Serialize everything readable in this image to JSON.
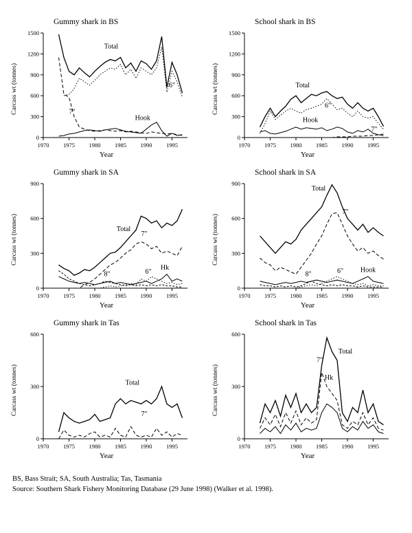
{
  "figure": {
    "footnote_abbreviations": "BS, Bass Strait; SA, South Australia; Tas, Tasmania",
    "footnote_source": "Source: Southern Shark Fishery Monitoring Database (29 June 1998) (Walker et al. 1998).",
    "line_color": "#000000",
    "background": "#ffffff"
  },
  "chart_data": [
    {
      "type": "line",
      "title": "Gummy shark in BS",
      "xlabel": "Year",
      "ylabel": "Carcass wt (tonnes)",
      "xlim": [
        1970,
        1998
      ],
      "ylim": [
        0,
        1500
      ],
      "yticks": [
        0,
        300,
        600,
        900,
        1200,
        1500
      ],
      "xticks": [
        1970,
        1975,
        1980,
        1985,
        1990,
        1995
      ],
      "x": [
        1973,
        1974,
        1975,
        1976,
        1977,
        1978,
        1979,
        1980,
        1981,
        1982,
        1983,
        1984,
        1985,
        1986,
        1987,
        1988,
        1989,
        1990,
        1991,
        1992,
        1993,
        1994,
        1995,
        1996,
        1997
      ],
      "series": [
        {
          "name": "Total",
          "style": "solid",
          "values": [
            1480,
            1150,
            950,
            900,
            1000,
            930,
            870,
            950,
            1020,
            1080,
            1120,
            1100,
            1150,
            1000,
            1070,
            950,
            1100,
            1060,
            980,
            1100,
            1450,
            720,
            1080,
            900,
            640
          ]
        },
        {
          "name": "6\"",
          "style": "dotted",
          "values": [
            null,
            600,
            620,
            700,
            850,
            800,
            750,
            820,
            900,
            950,
            1000,
            980,
            1050,
            900,
            980,
            850,
            1000,
            950,
            900,
            1000,
            1300,
            650,
            950,
            800,
            580
          ]
        },
        {
          "name": "7\"",
          "style": "dashed",
          "values": [
            1150,
            620,
            580,
            300,
            150,
            120,
            100,
            90,
            100,
            110,
            100,
            90,
            100,
            80,
            90,
            80,
            70,
            60,
            80,
            70,
            60,
            50,
            60,
            40,
            30
          ]
        },
        {
          "name": "Hook",
          "style": "solid",
          "values": [
            20,
            30,
            50,
            60,
            80,
            100,
            110,
            100,
            90,
            110,
            120,
            130,
            110,
            90,
            80,
            70,
            60,
            120,
            180,
            220,
            100,
            20,
            60,
            30,
            40
          ]
        }
      ],
      "annotations": [
        {
          "text": "Total",
          "x": 1983.2,
          "y": 1280
        },
        {
          "text": "6\"",
          "x": 1995.0,
          "y": 720
        },
        {
          "text": "7\"",
          "x": 1975.6,
          "y": 340
        },
        {
          "text": "Hook",
          "x": 1989.3,
          "y": 250
        }
      ]
    },
    {
      "type": "line",
      "title": "School shark in BS",
      "xlabel": "Year",
      "ylabel": "Carcass wt (tonnes)",
      "xlim": [
        1970,
        1998
      ],
      "ylim": [
        0,
        1500
      ],
      "yticks": [
        0,
        300,
        600,
        900,
        1200,
        1500
      ],
      "xticks": [
        1970,
        1975,
        1980,
        1985,
        1990,
        1995
      ],
      "x": [
        1973,
        1974,
        1975,
        1976,
        1977,
        1978,
        1979,
        1980,
        1981,
        1982,
        1983,
        1984,
        1985,
        1986,
        1987,
        1988,
        1989,
        1990,
        1991,
        1992,
        1993,
        1994,
        1995,
        1996,
        1997
      ],
      "series": [
        {
          "name": "Total",
          "style": "solid",
          "values": [
            150,
            300,
            420,
            300,
            380,
            450,
            550,
            600,
            500,
            560,
            620,
            600,
            640,
            660,
            600,
            560,
            580,
            480,
            420,
            500,
            420,
            380,
            420,
            300,
            160
          ]
        },
        {
          "name": "6\"",
          "style": "dotted",
          "values": [
            60,
            200,
            380,
            260,
            320,
            380,
            420,
            380,
            350,
            400,
            420,
            450,
            480,
            560,
            480,
            400,
            420,
            350,
            300,
            380,
            300,
            280,
            300,
            200,
            120
          ]
        },
        {
          "name": "Hook",
          "style": "solid",
          "values": [
            80,
            100,
            60,
            50,
            70,
            90,
            120,
            150,
            120,
            140,
            130,
            120,
            140,
            100,
            120,
            150,
            130,
            80,
            60,
            100,
            80,
            120,
            60,
            40,
            30
          ]
        },
        {
          "name": "7\"",
          "style": "dashed",
          "values": [
            0,
            0,
            0,
            0,
            0,
            0,
            0,
            0,
            0,
            0,
            0,
            0,
            0,
            0,
            0,
            10,
            10,
            10,
            20,
            20,
            20,
            30,
            30,
            40,
            50
          ]
        }
      ],
      "annotations": [
        {
          "text": "Total",
          "x": 1981.3,
          "y": 720
        },
        {
          "text": "6\"",
          "x": 1986.2,
          "y": 430
        },
        {
          "text": "Hook",
          "x": 1982.8,
          "y": 220
        },
        {
          "text": "7\"",
          "x": 1995.2,
          "y": 90
        }
      ]
    },
    {
      "type": "line",
      "title": "Gummy shark in SA",
      "xlabel": "Year",
      "ylabel": "Carcass wt (tonnes)",
      "xlim": [
        1970,
        1998
      ],
      "ylim": [
        0,
        900
      ],
      "yticks": [
        0,
        300,
        600,
        900
      ],
      "xticks": [
        1970,
        1975,
        1980,
        1985,
        1990,
        1995
      ],
      "x": [
        1973,
        1974,
        1975,
        1976,
        1977,
        1978,
        1979,
        1980,
        1981,
        1982,
        1983,
        1984,
        1985,
        1986,
        1987,
        1988,
        1989,
        1990,
        1991,
        1992,
        1993,
        1994,
        1995,
        1996,
        1997
      ],
      "series": [
        {
          "name": "Total",
          "style": "solid",
          "values": [
            200,
            170,
            150,
            110,
            130,
            160,
            150,
            180,
            220,
            260,
            300,
            310,
            350,
            400,
            450,
            500,
            620,
            600,
            560,
            580,
            520,
            560,
            540,
            580,
            680
          ]
        },
        {
          "name": "7\"",
          "style": "dashed",
          "values": [
            0,
            0,
            0,
            0,
            0,
            30,
            50,
            80,
            120,
            160,
            200,
            220,
            260,
            300,
            330,
            380,
            400,
            380,
            340,
            360,
            300,
            320,
            300,
            280,
            360
          ]
        },
        {
          "name": "8\"",
          "style": "shortdash",
          "values": [
            150,
            120,
            80,
            60,
            40,
            30,
            20,
            30,
            40,
            60,
            50,
            40,
            30,
            20,
            30,
            20,
            30,
            20,
            30,
            20,
            30,
            20,
            20,
            10,
            10
          ]
        },
        {
          "name": "6\"",
          "style": "dotted",
          "values": [
            0,
            0,
            0,
            0,
            0,
            0,
            0,
            0,
            0,
            10,
            20,
            10,
            20,
            30,
            40,
            30,
            80,
            60,
            100,
            80,
            60,
            40,
            50,
            30,
            40
          ]
        },
        {
          "name": "Hook",
          "style": "solid",
          "values": [
            100,
            80,
            60,
            50,
            40,
            50,
            40,
            30,
            40,
            50,
            60,
            40,
            50,
            40,
            30,
            40,
            50,
            60,
            40,
            60,
            80,
            120,
            60,
            80,
            60
          ]
        }
      ],
      "annotations": [
        {
          "text": "Total",
          "x": 1985.6,
          "y": 490
        },
        {
          "text": "7\"",
          "x": 1989.6,
          "y": 450
        },
        {
          "text": "8\"",
          "x": 1982.4,
          "y": 105
        },
        {
          "text": "6\"",
          "x": 1990.4,
          "y": 125
        },
        {
          "text": "Hk",
          "x": 1993.6,
          "y": 160
        }
      ]
    },
    {
      "type": "line",
      "title": "School shark in SA",
      "xlabel": "Year",
      "ylabel": "Carcass wt (tonnes)",
      "xlim": [
        1970,
        1998
      ],
      "ylim": [
        0,
        900
      ],
      "yticks": [
        0,
        300,
        600,
        900
      ],
      "xticks": [
        1970,
        1975,
        1980,
        1985,
        1990,
        1995
      ],
      "x": [
        1973,
        1974,
        1975,
        1976,
        1977,
        1978,
        1979,
        1980,
        1981,
        1982,
        1983,
        1984,
        1985,
        1986,
        1987,
        1988,
        1989,
        1990,
        1991,
        1992,
        1993,
        1994,
        1995,
        1996,
        1997
      ],
      "series": [
        {
          "name": "Total",
          "style": "solid",
          "values": [
            450,
            400,
            350,
            300,
            350,
            400,
            380,
            420,
            500,
            550,
            600,
            650,
            700,
            800,
            890,
            820,
            700,
            600,
            550,
            500,
            550,
            480,
            520,
            480,
            450
          ]
        },
        {
          "name": "7\"",
          "style": "dashed",
          "values": [
            260,
            220,
            200,
            150,
            180,
            160,
            140,
            120,
            180,
            240,
            300,
            380,
            450,
            550,
            640,
            650,
            550,
            450,
            380,
            320,
            350,
            300,
            320,
            280,
            250
          ]
        },
        {
          "name": "8\"",
          "style": "shortdash",
          "values": [
            30,
            20,
            20,
            10,
            20,
            10,
            20,
            10,
            20,
            40,
            60,
            40,
            30,
            20,
            30,
            20,
            30,
            20,
            20,
            10,
            20,
            10,
            10,
            10,
            10
          ]
        },
        {
          "name": "6\"",
          "style": "dotted",
          "values": [
            0,
            0,
            0,
            0,
            0,
            0,
            0,
            0,
            10,
            20,
            30,
            20,
            40,
            60,
            80,
            100,
            80,
            60,
            40,
            30,
            40,
            20,
            30,
            20,
            20
          ]
        },
        {
          "name": "Hook",
          "style": "solid",
          "values": [
            60,
            50,
            40,
            30,
            40,
            50,
            40,
            50,
            60,
            50,
            60,
            70,
            60,
            50,
            60,
            70,
            60,
            50,
            40,
            60,
            80,
            100,
            60,
            50,
            40
          ]
        }
      ],
      "annotations": [
        {
          "text": "Total",
          "x": 1984.4,
          "y": 840
        },
        {
          "text": "7\"",
          "x": 1989.6,
          "y": 640
        },
        {
          "text": "8\"",
          "x": 1982.4,
          "y": 105
        },
        {
          "text": "6\"",
          "x": 1988.6,
          "y": 130
        },
        {
          "text": "Hook",
          "x": 1994.0,
          "y": 140
        }
      ]
    },
    {
      "type": "line",
      "title": "Gummy shark in Tas",
      "xlabel": "Year",
      "ylabel": "Carcass wt (tonnes)",
      "xlim": [
        1970,
        1998
      ],
      "ylim": [
        0,
        600
      ],
      "yticks": [
        0,
        300,
        600
      ],
      "xticks": [
        1970,
        1975,
        1980,
        1985,
        1990,
        1995
      ],
      "x": [
        1973,
        1974,
        1975,
        1976,
        1977,
        1978,
        1979,
        1980,
        1981,
        1982,
        1983,
        1984,
        1985,
        1986,
        1987,
        1988,
        1989,
        1990,
        1991,
        1992,
        1993,
        1994,
        1995,
        1996,
        1997
      ],
      "series": [
        {
          "name": "Total",
          "style": "solid",
          "values": [
            40,
            150,
            120,
            100,
            90,
            100,
            110,
            140,
            100,
            110,
            120,
            200,
            230,
            200,
            220,
            210,
            200,
            220,
            200,
            230,
            300,
            200,
            180,
            200,
            120
          ]
        },
        {
          "name": "7\"",
          "style": "dashed",
          "values": [
            0,
            50,
            20,
            10,
            20,
            10,
            30,
            40,
            10,
            20,
            10,
            60,
            20,
            10,
            70,
            20,
            10,
            20,
            10,
            60,
            20,
            40,
            10,
            30,
            20
          ]
        }
      ],
      "annotations": [
        {
          "text": "Total",
          "x": 1987.3,
          "y": 310
        },
        {
          "text": "7\"",
          "x": 1989.6,
          "y": 130
        }
      ]
    },
    {
      "type": "line",
      "title": "School shark in Tas",
      "xlabel": "Year",
      "ylabel": "Carcass wt (tonnes)",
      "xlim": [
        1970,
        1998
      ],
      "ylim": [
        0,
        600
      ],
      "yticks": [
        0,
        300,
        600
      ],
      "xticks": [
        1970,
        1975,
        1980,
        1985,
        1990,
        1995
      ],
      "x": [
        1973,
        1974,
        1975,
        1976,
        1977,
        1978,
        1979,
        1980,
        1981,
        1982,
        1983,
        1984,
        1985,
        1986,
        1987,
        1988,
        1989,
        1990,
        1991,
        1992,
        1993,
        1994,
        1995,
        1996,
        1997
      ],
      "series": [
        {
          "name": "Total",
          "style": "solid",
          "values": [
            90,
            200,
            150,
            220,
            130,
            250,
            180,
            260,
            150,
            200,
            150,
            180,
            420,
            580,
            500,
            450,
            150,
            100,
            180,
            150,
            280,
            150,
            200,
            100,
            80
          ]
        },
        {
          "name": "7\"",
          "style": "dashed",
          "values": [
            60,
            120,
            80,
            140,
            70,
            150,
            90,
            160,
            80,
            120,
            90,
            110,
            380,
            300,
            260,
            220,
            80,
            60,
            100,
            80,
            150,
            80,
            120,
            60,
            50
          ]
        },
        {
          "name": "Hook",
          "style": "solid",
          "values": [
            30,
            60,
            40,
            70,
            30,
            80,
            50,
            90,
            40,
            60,
            50,
            60,
            150,
            200,
            180,
            150,
            60,
            40,
            70,
            50,
            100,
            60,
            80,
            40,
            30
          ]
        }
      ],
      "annotations": [
        {
          "text": "Total",
          "x": 1989.6,
          "y": 490
        },
        {
          "text": "7\"",
          "x": 1984.6,
          "y": 440
        },
        {
          "text": "Hk",
          "x": 1986.4,
          "y": 340
        }
      ]
    }
  ]
}
